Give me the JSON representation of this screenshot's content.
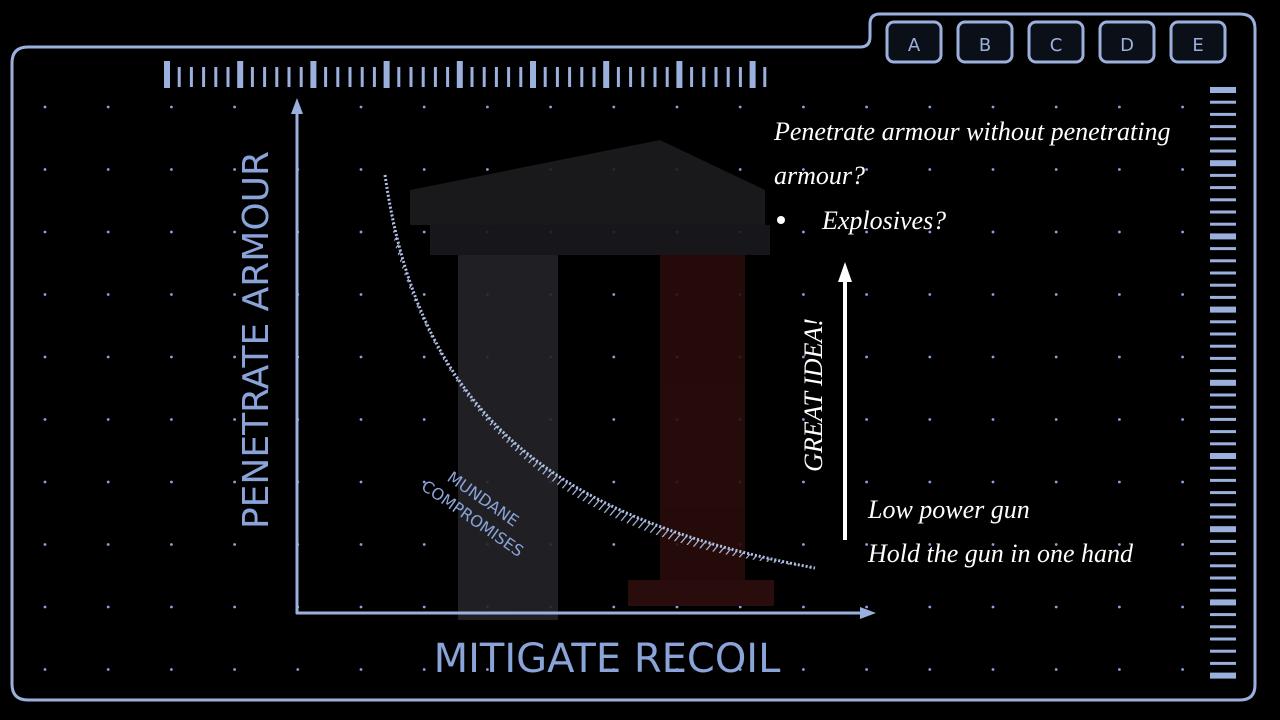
{
  "tabs": [
    "A",
    "B",
    "C",
    "D",
    "E"
  ],
  "y_axis_label": "PENETRATE ARMOUR",
  "x_axis_label": "MITIGATE RECOIL",
  "band_label": [
    "MUNDANE",
    "COMPROMISES"
  ],
  "notes": {
    "question": [
      "Penetrate armour without penetrating",
      "armour?"
    ],
    "bullets": [
      "Explosives?"
    ]
  },
  "arrow_label": "GREAT IDEA!",
  "low_end": [
    "Low power gun",
    "Hold the gun in one hand"
  ]
}
